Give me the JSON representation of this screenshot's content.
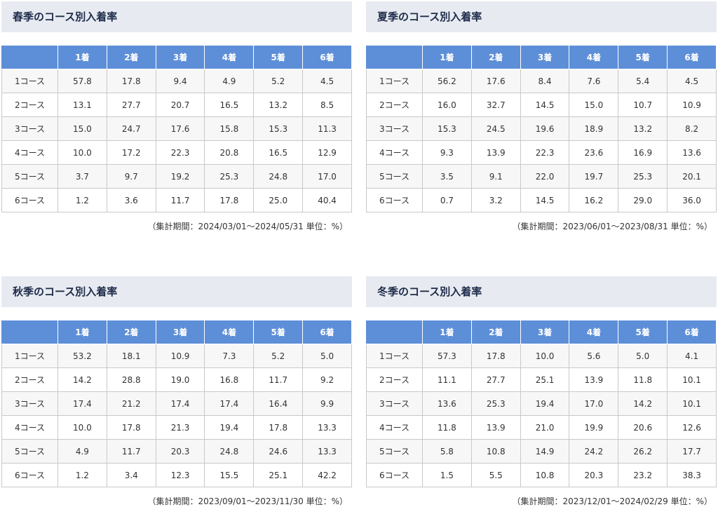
{
  "panels": [
    {
      "title": "春季のコース別入着率",
      "header": [
        "1着",
        "2着",
        "3着",
        "4着",
        "5着",
        "6着"
      ],
      "rows": [
        {
          "label": "1コース",
          "cells": [
            "57.8",
            "17.8",
            "9.4",
            "4.9",
            "5.2",
            "4.5"
          ]
        },
        {
          "label": "2コース",
          "cells": [
            "13.1",
            "27.7",
            "20.7",
            "16.5",
            "13.2",
            "8.5"
          ]
        },
        {
          "label": "3コース",
          "cells": [
            "15.0",
            "24.7",
            "17.6",
            "15.8",
            "15.3",
            "11.3"
          ]
        },
        {
          "label": "4コース",
          "cells": [
            "10.0",
            "17.2",
            "22.3",
            "20.8",
            "16.5",
            "12.9"
          ]
        },
        {
          "label": "5コース",
          "cells": [
            "3.7",
            "9.7",
            "19.2",
            "25.3",
            "24.8",
            "17.0"
          ]
        },
        {
          "label": "6コース",
          "cells": [
            "1.2",
            "3.6",
            "11.7",
            "17.8",
            "25.0",
            "40.4"
          ]
        }
      ],
      "note": "（集計期間：2024/03/01～2024/05/31 単位：%）"
    },
    {
      "title": "夏季のコース別入着率",
      "header": [
        "1着",
        "2着",
        "3着",
        "4着",
        "5着",
        "6着"
      ],
      "rows": [
        {
          "label": "1コース",
          "cells": [
            "56.2",
            "17.6",
            "8.4",
            "7.6",
            "5.4",
            "4.5"
          ]
        },
        {
          "label": "2コース",
          "cells": [
            "16.0",
            "32.7",
            "14.5",
            "15.0",
            "10.7",
            "10.9"
          ]
        },
        {
          "label": "3コース",
          "cells": [
            "15.3",
            "24.5",
            "19.6",
            "18.9",
            "13.2",
            "8.2"
          ]
        },
        {
          "label": "4コース",
          "cells": [
            "9.3",
            "13.9",
            "22.3",
            "23.6",
            "16.9",
            "13.6"
          ]
        },
        {
          "label": "5コース",
          "cells": [
            "3.5",
            "9.1",
            "22.0",
            "19.7",
            "25.3",
            "20.1"
          ]
        },
        {
          "label": "6コース",
          "cells": [
            "0.7",
            "3.2",
            "14.5",
            "16.2",
            "29.0",
            "36.0"
          ]
        }
      ],
      "note": "（集計期間：2023/06/01～2023/08/31 単位：%）"
    },
    {
      "title": "秋季のコース別入着率",
      "header": [
        "1着",
        "2着",
        "3着",
        "4着",
        "5着",
        "6着"
      ],
      "rows": [
        {
          "label": "1コース",
          "cells": [
            "53.2",
            "18.1",
            "10.9",
            "7.3",
            "5.2",
            "5.0"
          ]
        },
        {
          "label": "2コース",
          "cells": [
            "14.2",
            "28.8",
            "19.0",
            "16.8",
            "11.7",
            "9.2"
          ]
        },
        {
          "label": "3コース",
          "cells": [
            "17.4",
            "21.2",
            "17.4",
            "17.4",
            "16.4",
            "9.9"
          ]
        },
        {
          "label": "4コース",
          "cells": [
            "10.0",
            "17.8",
            "21.3",
            "19.4",
            "17.8",
            "13.3"
          ]
        },
        {
          "label": "5コース",
          "cells": [
            "4.9",
            "11.7",
            "20.3",
            "24.8",
            "24.6",
            "13.3"
          ]
        },
        {
          "label": "6コース",
          "cells": [
            "1.2",
            "3.4",
            "12.3",
            "15.5",
            "25.1",
            "42.2"
          ]
        }
      ],
      "note": "（集計期間：2023/09/01～2023/11/30 単位：%）"
    },
    {
      "title": "冬季のコース別入着率",
      "header": [
        "1着",
        "2着",
        "3着",
        "4着",
        "5着",
        "6着"
      ],
      "rows": [
        {
          "label": "1コース",
          "cells": [
            "57.3",
            "17.8",
            "10.0",
            "5.6",
            "5.0",
            "4.1"
          ]
        },
        {
          "label": "2コース",
          "cells": [
            "11.1",
            "27.7",
            "25.1",
            "13.9",
            "11.8",
            "10.1"
          ]
        },
        {
          "label": "3コース",
          "cells": [
            "13.6",
            "25.3",
            "19.4",
            "17.0",
            "14.2",
            "10.1"
          ]
        },
        {
          "label": "4コース",
          "cells": [
            "11.8",
            "13.9",
            "21.0",
            "19.9",
            "20.6",
            "12.6"
          ]
        },
        {
          "label": "5コース",
          "cells": [
            "5.8",
            "10.8",
            "14.9",
            "24.2",
            "26.2",
            "17.7"
          ]
        },
        {
          "label": "6コース",
          "cells": [
            "1.5",
            "5.5",
            "10.8",
            "20.3",
            "23.2",
            "38.3"
          ]
        }
      ],
      "note": "（集計期間：2023/12/01～2024/02/29 単位：%）"
    }
  ]
}
